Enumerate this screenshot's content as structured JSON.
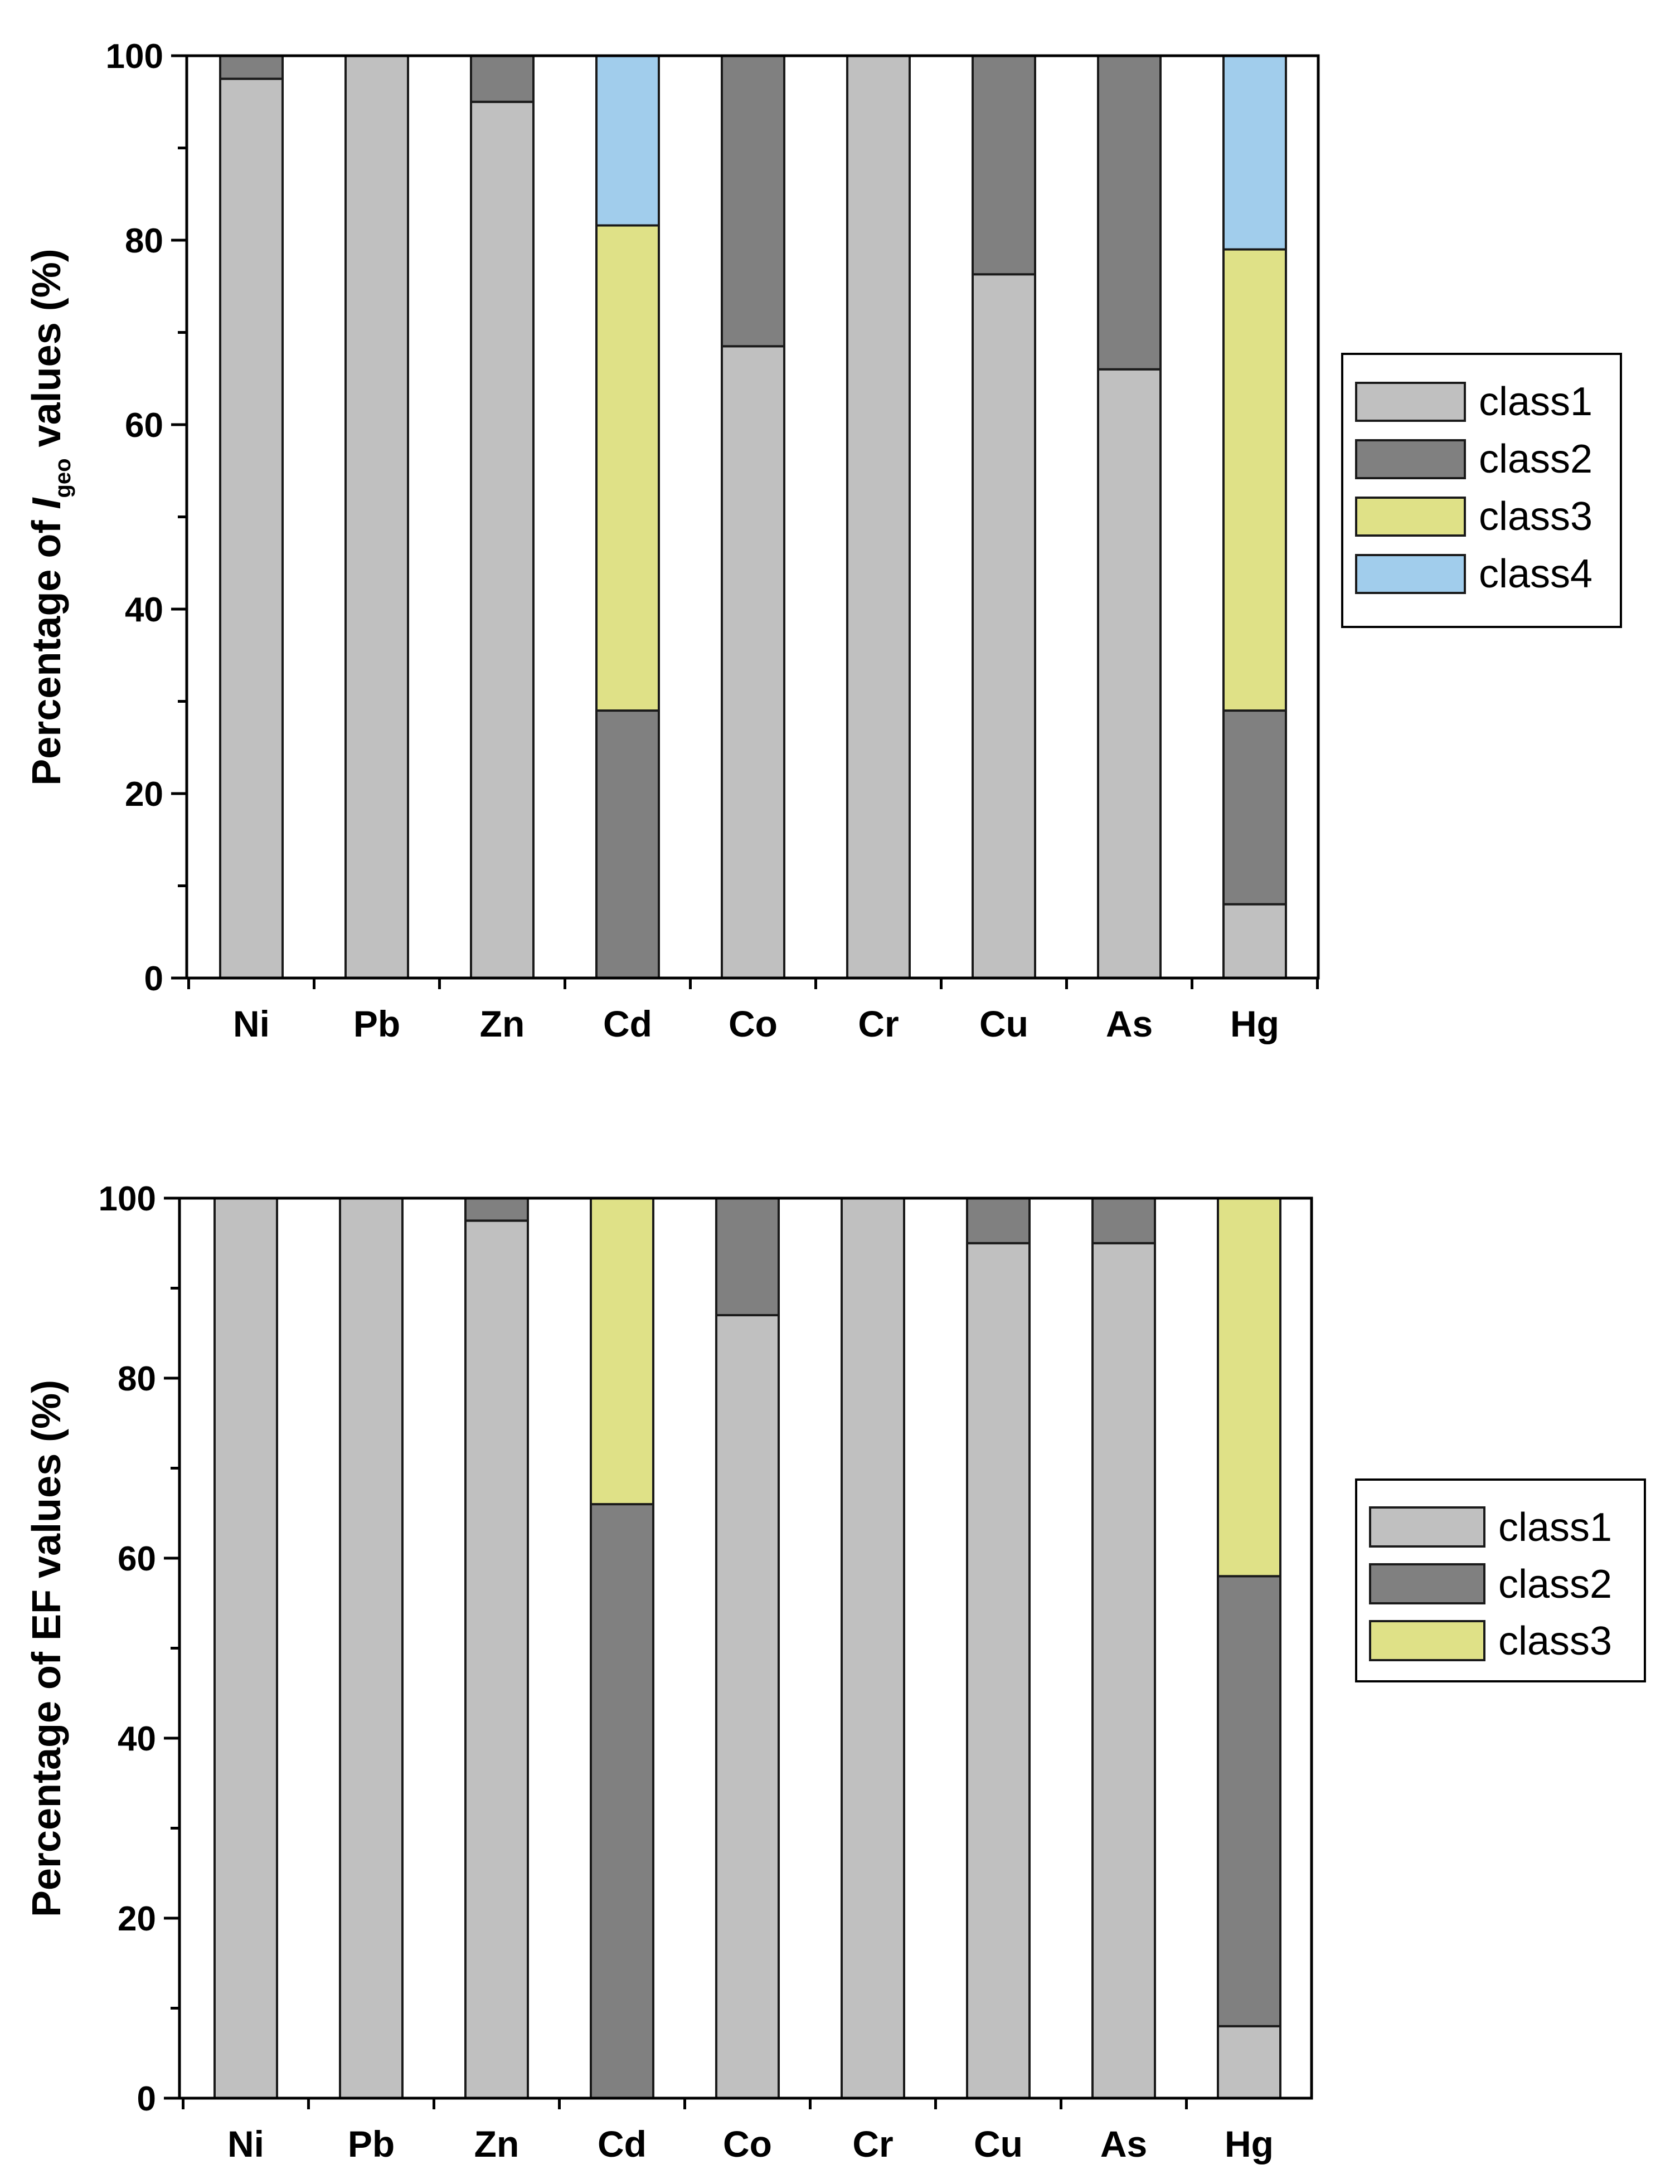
{
  "colors": {
    "class1": "#c0c0c0",
    "class2": "#808080",
    "class3": "#dfe187",
    "class4": "#a1cdec"
  },
  "chart_data": [
    {
      "type": "bar",
      "stacked": true,
      "ylabel_prefix": "Percentage of ",
      "ylabel_italic": "I",
      "ylabel_sub": "geo",
      "ylabel_suffix": " values (%)",
      "ylim": [
        0,
        100
      ],
      "yticks": [
        "0",
        "20",
        "40",
        "60",
        "80",
        "100"
      ],
      "categories": [
        "Ni",
        "Pb",
        "Zn",
        "Cd",
        "Co",
        "Cr",
        "Cu",
        "As",
        "Hg"
      ],
      "legend_position": "right",
      "series": [
        {
          "name": "class1",
          "key": "class1",
          "values": [
            97.5,
            100,
            95,
            0,
            68.5,
            100,
            76.3,
            66,
            8
          ]
        },
        {
          "name": "class2",
          "key": "class2",
          "values": [
            2.5,
            0,
            5,
            29,
            31.5,
            0,
            23.7,
            34,
            21
          ]
        },
        {
          "name": "class3",
          "key": "class3",
          "values": [
            0,
            0,
            0,
            52.6,
            0,
            0,
            0,
            0,
            50
          ]
        },
        {
          "name": "class4",
          "key": "class4",
          "values": [
            0,
            0,
            0,
            18.4,
            0,
            0,
            0,
            0,
            21
          ]
        }
      ]
    },
    {
      "type": "bar",
      "stacked": true,
      "ylabel": "Percentage of EF values (%)",
      "ylim": [
        0,
        100
      ],
      "yticks": [
        "0",
        "20",
        "40",
        "60",
        "80",
        "100"
      ],
      "categories": [
        "Ni",
        "Pb",
        "Zn",
        "Cd",
        "Co",
        "Cr",
        "Cu",
        "As",
        "Hg"
      ],
      "legend_position": "right",
      "series": [
        {
          "name": "class1",
          "key": "class1",
          "values": [
            100,
            100,
            97.5,
            0,
            87,
            100,
            95,
            95,
            8
          ]
        },
        {
          "name": "class2",
          "key": "class2",
          "values": [
            0,
            0,
            2.5,
            66,
            13,
            0,
            5,
            5,
            50
          ]
        },
        {
          "name": "class3",
          "key": "class3",
          "values": [
            0,
            0,
            0,
            34,
            0,
            0,
            0,
            0,
            42
          ]
        }
      ]
    }
  ]
}
